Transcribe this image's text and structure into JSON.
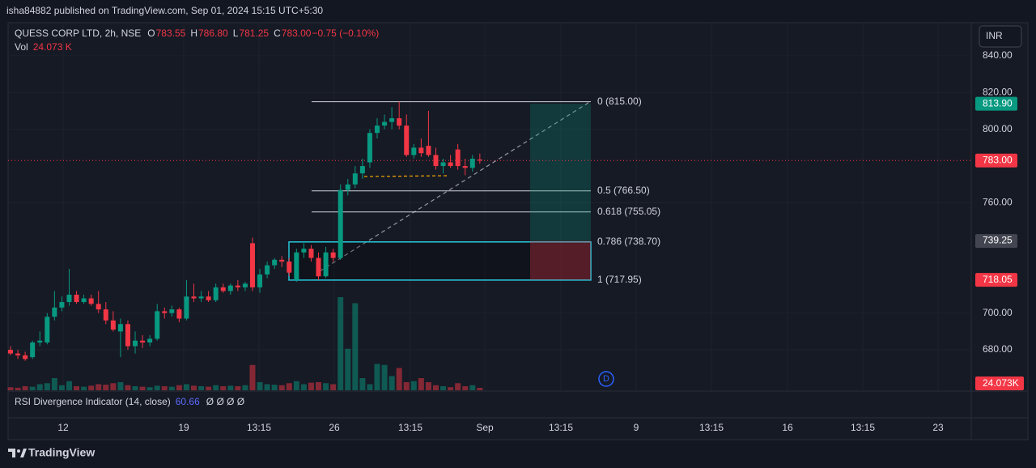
{
  "header": "isha84882 published on TradingView.com, Sep 01, 2024 15:15 UTC+5:30",
  "chart_data": {
    "type": "candlestick",
    "symbol": "QUESS CORP LTD, 2h, NSE",
    "legend": [
      {
        "key": "O",
        "value": "783.55"
      },
      {
        "key": "H",
        "value": "786.80"
      },
      {
        "key": "L",
        "value": "781.25"
      },
      {
        "key": "C",
        "value": "783.00"
      },
      {
        "key": "",
        "value": "−0.75 (−0.10%)"
      }
    ],
    "volume_title": "Vol",
    "volume_value": "24.073 K",
    "currency": "INR",
    "ylim": [
      658,
      858
    ],
    "yticks": [
      {
        "value": 680,
        "label": "680.00"
      },
      {
        "value": 700,
        "label": "700.00"
      },
      {
        "value": 760,
        "label": "760.00"
      },
      {
        "value": 800,
        "label": "800.00"
      },
      {
        "value": 820,
        "label": "820.00"
      },
      {
        "value": 840,
        "label": "840.00"
      }
    ],
    "grid": true,
    "up_color": "#089981",
    "down_color": "#f23645",
    "x_labels": [
      "12",
      "19",
      "13:15",
      "26",
      "13:15",
      "Sep",
      "13:15",
      "9",
      "13:15",
      "16",
      "13:15",
      "23"
    ],
    "ohlc": [
      [
        680,
        682,
        677,
        678
      ],
      [
        678,
        680,
        675,
        677
      ],
      [
        677,
        679,
        674,
        675
      ],
      [
        676,
        685,
        675,
        684
      ],
      [
        684,
        690,
        682,
        685
      ],
      [
        684,
        700,
        683,
        698
      ],
      [
        698,
        712,
        696,
        703
      ],
      [
        703,
        709,
        701,
        706
      ],
      [
        706,
        724,
        704,
        710
      ],
      [
        710,
        712,
        705,
        706
      ],
      [
        706,
        710,
        705,
        708
      ],
      [
        708,
        710,
        704,
        705
      ],
      [
        705,
        712,
        700,
        702
      ],
      [
        702,
        706,
        694,
        696
      ],
      [
        696,
        701,
        690,
        691
      ],
      [
        690,
        697,
        676,
        694
      ],
      [
        694,
        696,
        680,
        682
      ],
      [
        682,
        690,
        678,
        685
      ],
      [
        685,
        688,
        681,
        684
      ],
      [
        684,
        688,
        682,
        686
      ],
      [
        686,
        705,
        685,
        701
      ],
      [
        701,
        703,
        697,
        700
      ],
      [
        700,
        704,
        698,
        702
      ],
      [
        702,
        703,
        695,
        697
      ],
      [
        697,
        718,
        696,
        709
      ],
      [
        709,
        716,
        706,
        708
      ],
      [
        708,
        712,
        706,
        709
      ],
      [
        709,
        712,
        706,
        707
      ],
      [
        707,
        716,
        706,
        714
      ],
      [
        714,
        716,
        711,
        712
      ],
      [
        712,
        716,
        710,
        715
      ],
      [
        715,
        718,
        712,
        714
      ],
      [
        714,
        717,
        712,
        716
      ],
      [
        738,
        741,
        712,
        714
      ],
      [
        714,
        724,
        711,
        721
      ],
      [
        721,
        728,
        719,
        726
      ],
      [
        726,
        730,
        724,
        729
      ],
      [
        729,
        731,
        725,
        728
      ],
      [
        728,
        730,
        720,
        722
      ],
      [
        718,
        735,
        717,
        733
      ],
      [
        733,
        738,
        730,
        735
      ],
      [
        735,
        737,
        728,
        730
      ],
      [
        730,
        733,
        718,
        720
      ],
      [
        720,
        736,
        719,
        733
      ],
      [
        733,
        735,
        728,
        730
      ],
      [
        730,
        770,
        729,
        767
      ],
      [
        767,
        773,
        764,
        770
      ],
      [
        770,
        780,
        768,
        776
      ],
      [
        776,
        784,
        773,
        780
      ],
      [
        782,
        800,
        779,
        798
      ],
      [
        798,
        806,
        795,
        802
      ],
      [
        802,
        808,
        800,
        804
      ],
      [
        804,
        812,
        800,
        806
      ],
      [
        806,
        815,
        800,
        802
      ],
      [
        802,
        808,
        785,
        786
      ],
      [
        786,
        792,
        784,
        790
      ],
      [
        790,
        795,
        785,
        787
      ],
      [
        791,
        810,
        785,
        786
      ],
      [
        786,
        790,
        778,
        780
      ],
      [
        780,
        784,
        776,
        782
      ],
      [
        782,
        786,
        779,
        780
      ],
      [
        789,
        792,
        778,
        780
      ],
      [
        780,
        784,
        775,
        779
      ],
      [
        779,
        786,
        777,
        784
      ],
      [
        783.55,
        786.8,
        781.25,
        783
      ]
    ],
    "volume": [
      30,
      25,
      40,
      35,
      60,
      70,
      120,
      50,
      90,
      40,
      35,
      45,
      60,
      55,
      70,
      80,
      50,
      40,
      35,
      30,
      45,
      40,
      35,
      50,
      60,
      45,
      40,
      35,
      50,
      40,
      45,
      40,
      50,
      250,
      80,
      60,
      55,
      50,
      70,
      90,
      60,
      75,
      80,
      70,
      60,
      920,
      410,
      860,
      120,
      60,
      260,
      250,
      140,
      220,
      80,
      90,
      120,
      80,
      50,
      40,
      30,
      70,
      40,
      50,
      24.073
    ],
    "current_price": 783,
    "price_badges": [
      {
        "value": 813.9,
        "label": "813.90",
        "color": "#089981"
      },
      {
        "value": 783,
        "label": "783.00",
        "color": "#f23645"
      },
      {
        "value": 739.25,
        "label": "739.25",
        "color": "#434651"
      },
      {
        "value": 718.05,
        "label": "718.05",
        "color": "#f23645"
      }
    ],
    "volume_badge": "24.073K",
    "fib_levels": [
      {
        "price": 815,
        "label": "0 (815.00)"
      },
      {
        "price": 766.5,
        "label": "0.5 (766.50)"
      },
      {
        "price": 755.05,
        "label": "0.618 (755.05)"
      },
      {
        "price": 738.7,
        "label": "0.786 (738.70)"
      },
      {
        "price": 717.95,
        "label": "1 (717.95)"
      }
    ],
    "position": {
      "target": 813.9,
      "entry": 739.25,
      "stop": 718.05
    },
    "event_marker": "D",
    "rsi_title": "RSI Divergence Indicator (14, close)",
    "rsi_value": 60.66,
    "rsi_extras": "Ø Ø Ø Ø"
  },
  "footer": "TradingView"
}
